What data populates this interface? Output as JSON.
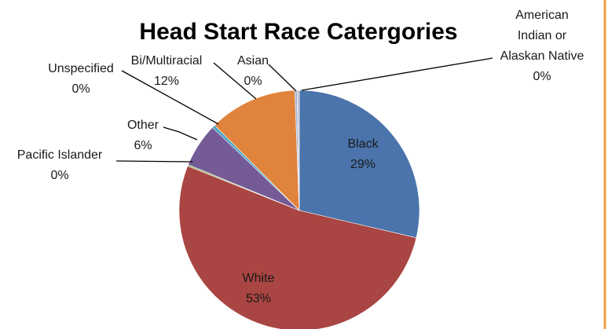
{
  "chart_data": {
    "type": "pie",
    "title": "Head Start Race Catergories",
    "categories": [
      "Black",
      "White",
      "Pacific Islander",
      "Other",
      "Unspecified",
      "Bi/Multiracial",
      "Asian",
      "American Indian or Alaskan Native"
    ],
    "values": [
      29,
      53,
      0.2,
      6,
      0.4,
      12,
      0.3,
      0.3
    ],
    "value_labels": [
      "29%",
      "53%",
      "0%",
      "6%",
      "0%",
      "12%",
      "0%",
      "0%"
    ],
    "colors": [
      "#4a74ab",
      "#a94542",
      "#8aa84e",
      "#745b96",
      "#3ba3c0",
      "#e0833c",
      "#9db3d8",
      "#c2bfd0"
    ]
  }
}
